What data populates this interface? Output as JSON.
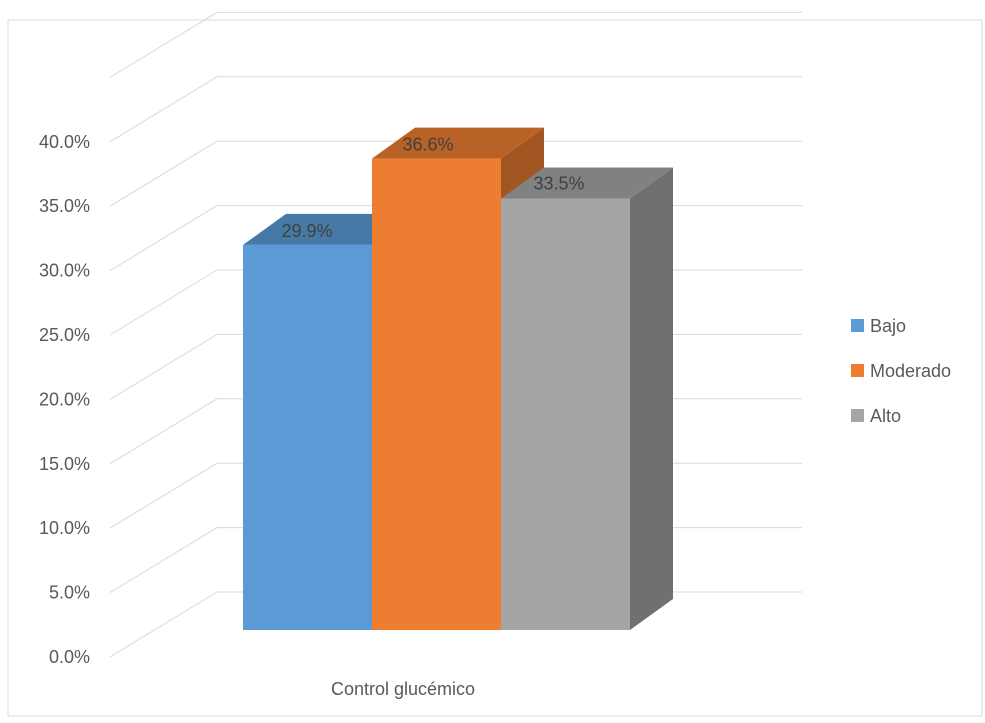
{
  "chart_data": {
    "type": "bar",
    "categories": [
      "Control glucémico"
    ],
    "series": [
      {
        "name": "Bajo",
        "values": [
          29.9
        ],
        "color": "#5B9BD5",
        "label": "29.9%"
      },
      {
        "name": "Moderado",
        "values": [
          36.6
        ],
        "color": "#ED7D31",
        "label": "36.6%"
      },
      {
        "name": "Alto",
        "values": [
          33.5
        ],
        "color": "#A5A5A5",
        "label": "33.5%"
      }
    ],
    "ylim": [
      0,
      45
    ],
    "yticks": [
      {
        "value": 0,
        "label": "0.0%"
      },
      {
        "value": 5,
        "label": "5.0%"
      },
      {
        "value": 10,
        "label": "10.0%"
      },
      {
        "value": 15,
        "label": "15.0%"
      },
      {
        "value": 20,
        "label": "20.0%"
      },
      {
        "value": 25,
        "label": "25.0%"
      },
      {
        "value": 30,
        "label": "30.0%"
      },
      {
        "value": 35,
        "label": "35.0%"
      },
      {
        "value": 40,
        "label": "40.0%"
      }
    ],
    "title": "",
    "xlabel": "",
    "ylabel": "",
    "grid": true,
    "legend_position": "right",
    "style": "3d-clustered-column"
  }
}
